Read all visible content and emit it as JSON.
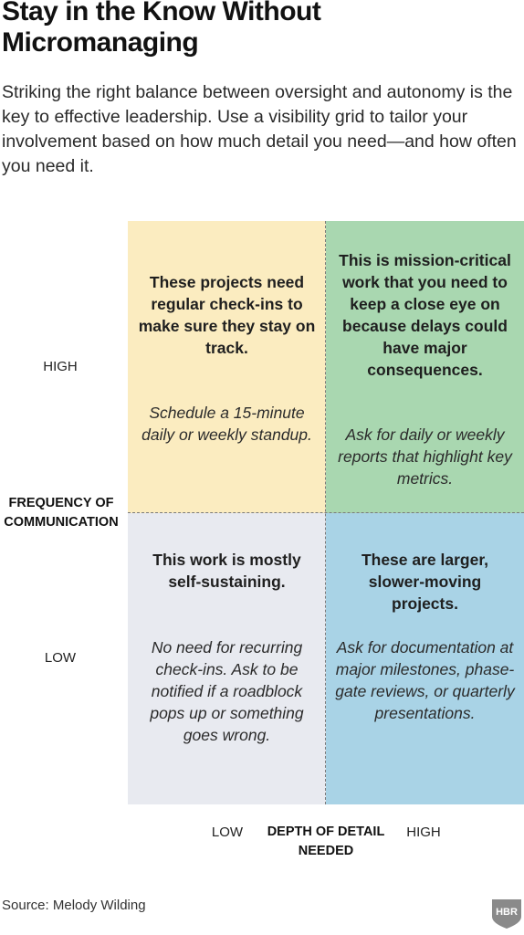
{
  "title": "Stay in the Know Without Micromanaging",
  "intro": "Striking the right balance between oversight and autonomy is the key to effective leadership. Use a visibility grid to tailor your involvement based on how much detail you need—and how often you need it.",
  "y_axis": {
    "title": "FREQUENCY OF COMMUNICATION",
    "high": "HIGH",
    "low": "LOW"
  },
  "x_axis": {
    "title": "DEPTH OF DETAIL NEEDED",
    "low": "LOW",
    "high": "HIGH"
  },
  "quadrants": {
    "high_frequency_low_detail": {
      "heading": "These projects need regular check-ins to make sure they stay on track.",
      "action": "Schedule a 15-minute daily or weekly standup.",
      "color": "#fbecc0"
    },
    "high_frequency_high_detail": {
      "heading": "This is mission-critical work that you need to keep a close eye on because delays could have major consequences.",
      "action": "Ask for daily or weekly reports that highlight key metrics.",
      "color": "#a9d7b0"
    },
    "low_frequency_low_detail": {
      "heading": "This work is mostly self-sustaining.",
      "action": "No need for recurring check-ins. Ask to be notified if a roadblock pops up or something goes wrong.",
      "color": "#e8eaf0"
    },
    "low_frequency_high_detail": {
      "heading": "These are larger, slower-moving projects.",
      "action": "Ask for documentation at major milestones, phase-gate reviews, or quarterly presentations.",
      "color": "#a9d3e6"
    }
  },
  "source": "Source: Melody Wilding",
  "logo_text": "HBR",
  "logo_icon": "hbr-shield-icon"
}
